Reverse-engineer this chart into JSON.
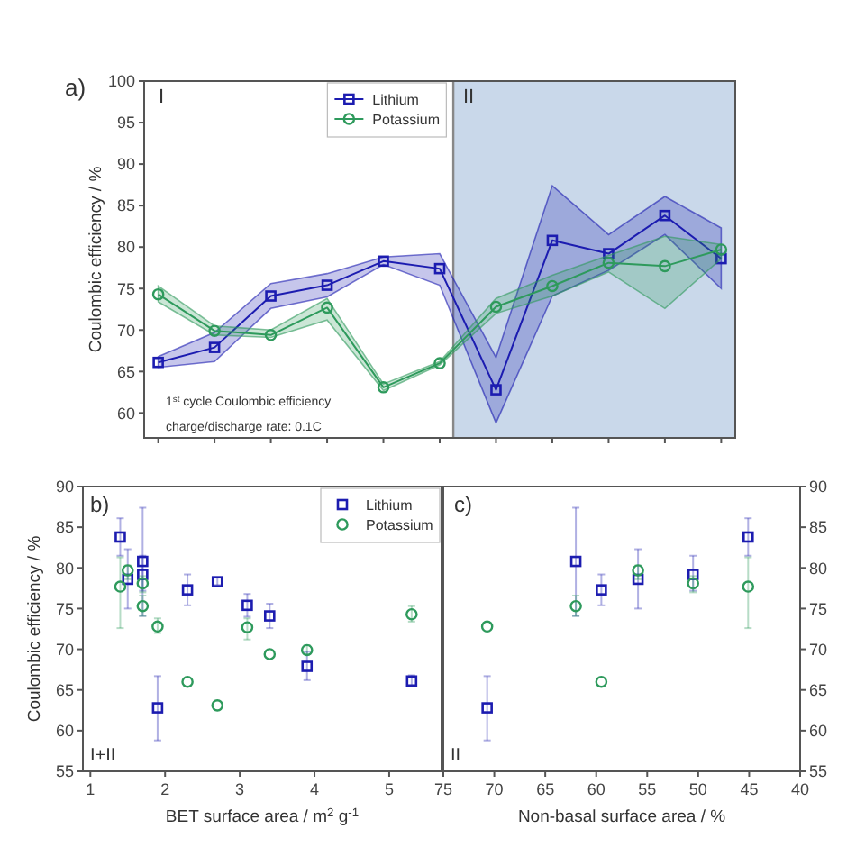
{
  "chart_data": [
    {
      "type": "line",
      "ylabel": "Coulombic efficiency / %",
      "categories": [
        null,
        null,
        null,
        null,
        null,
        null,
        null,
        null,
        null,
        null,
        null
      ],
      "ylim": [
        57,
        100
      ],
      "yticks": [
        60,
        65,
        70,
        75,
        80,
        85,
        90,
        95,
        100
      ],
      "tick_labels": "y",
      "legend": "top",
      "annotations": [
        "a)",
        "I",
        "II",
        "1$^{st}$ cycle Coulombic efficiency",
        "charge/discharge rate: 0.1C"
      ],
      "series": [
        {
          "name": "Lithium",
          "color": "#1c1cb0",
          "marker": "square",
          "values": [
            66.1,
            67.9,
            74.1,
            75.4,
            78.3,
            77.4,
            62.8,
            80.8,
            79.2,
            83.8,
            78.6
          ],
          "lower": [
            65.5,
            66.2,
            72.6,
            74,
            77.9,
            75.4,
            58.8,
            74.1,
            77.2,
            81.5,
            75.0
          ],
          "upper": [
            66.8,
            69.7,
            75.6,
            76.8,
            78.8,
            79.2,
            66.7,
            87.4,
            81.5,
            86.1,
            82.3
          ]
        },
        {
          "name": "Potassium",
          "color": "#2e9a5c",
          "marker": "circle",
          "values": [
            74.3,
            69.9,
            69.4,
            72.7,
            63.1,
            66.0,
            72.8,
            75.3,
            78.1,
            77.7,
            79.7
          ],
          "lower": [
            73.4,
            69.4,
            69.1,
            71.2,
            62.7,
            65.8,
            72.0,
            74.1,
            77.0,
            72.6,
            78.6
          ],
          "upper": [
            75.3,
            70.5,
            70.0,
            73.8,
            63.5,
            66.2,
            73.8,
            76.6,
            79.0,
            81.3,
            80.3
          ]
        }
      ]
    },
    {
      "type": "scatter",
      "xlabel": "BET surface area / m$^{2}$ g$^{-1}$",
      "ylabel": "Coulombic efficiency / %",
      "xlim": [
        0.9,
        5.7
      ],
      "xticks": [
        1,
        2,
        3,
        4,
        5
      ],
      "ylim": [
        55,
        90
      ],
      "yticks": [
        55,
        60,
        65,
        70,
        75,
        80,
        85,
        90
      ],
      "legend": "top right",
      "annotations": [
        "b)",
        "I+II"
      ],
      "series": [
        {
          "name": "Lithium",
          "color": "#1c1cb0",
          "marker": "square",
          "x": [
            1.4,
            1.5,
            1.7,
            1.7,
            1.9,
            2.3,
            2.7,
            3.1,
            3.4,
            3.9,
            5.3
          ],
          "values": [
            83.8,
            78.6,
            80.8,
            79.2,
            62.8,
            77.3,
            78.3,
            75.4,
            74.1,
            67.9,
            66.1
          ],
          "errors": [
            [
              81.5,
              86.1
            ],
            [
              75,
              82.3
            ],
            [
              74.1,
              87.4
            ],
            [
              77.2,
              81.5
            ],
            [
              58.8,
              66.7
            ],
            [
              75.4,
              79.2
            ],
            [
              77.9,
              78.8
            ],
            [
              74,
              76.8
            ],
            [
              72.6,
              75.6
            ],
            [
              66.2,
              69.7
            ],
            [
              65.5,
              66.8
            ]
          ]
        },
        {
          "name": "Potassium",
          "color": "#2e9a5c",
          "marker": "circle",
          "x": [
            1.4,
            1.5,
            1.7,
            1.7,
            1.9,
            2.3,
            2.7,
            3.1,
            3.4,
            3.9,
            5.3
          ],
          "values": [
            77.7,
            79.7,
            78.1,
            75.3,
            72.8,
            66.0,
            63.1,
            72.7,
            69.4,
            69.9,
            74.3
          ],
          "errors": [
            [
              72.6,
              81.3
            ],
            [
              78.6,
              80.3
            ],
            [
              77,
              79
            ],
            [
              74.1,
              76.6
            ],
            [
              72,
              73.8
            ],
            null,
            null,
            [
              71.2,
              73.8
            ],
            null,
            [
              69.4,
              70.5
            ],
            [
              73.4,
              75.3
            ]
          ]
        }
      ]
    },
    {
      "type": "scatter",
      "xlabel": "Non-basal surface area / %",
      "xlim": [
        75,
        40
      ],
      "xticks": [
        75,
        70,
        65,
        60,
        55,
        50,
        45,
        40
      ],
      "y2lim": [
        55,
        90
      ],
      "y2ticks": [
        55,
        60,
        65,
        70,
        75,
        80,
        85,
        90
      ],
      "annotations": [
        "c)",
        "II"
      ],
      "series": [
        {
          "color": "#1c1cb0",
          "marker": "square",
          "axis": "y2",
          "x": [
            70.7,
            62,
            59.5,
            55.9,
            50.5,
            45.1
          ],
          "values": [
            62.8,
            80.8,
            77.3,
            78.6,
            79.2,
            83.8
          ],
          "errors": [
            [
              58.8,
              66.7
            ],
            [
              74.1,
              87.4
            ],
            [
              75.4,
              79.2
            ],
            [
              75,
              82.3
            ],
            [
              77.2,
              81.5
            ],
            [
              81.5,
              86.1
            ]
          ]
        },
        {
          "color": "#2e9a5c",
          "marker": "circle",
          "axis": "y2",
          "x": [
            70.7,
            62,
            59.5,
            55.9,
            50.5,
            45.1
          ],
          "values": [
            72.8,
            75.3,
            66.0,
            79.7,
            78.1,
            77.7
          ],
          "errors": [
            null,
            [
              74.1,
              76.6
            ],
            null,
            [
              78.6,
              80.3
            ],
            [
              77,
              79
            ],
            [
              72.6,
              81.3
            ]
          ]
        }
      ]
    }
  ]
}
